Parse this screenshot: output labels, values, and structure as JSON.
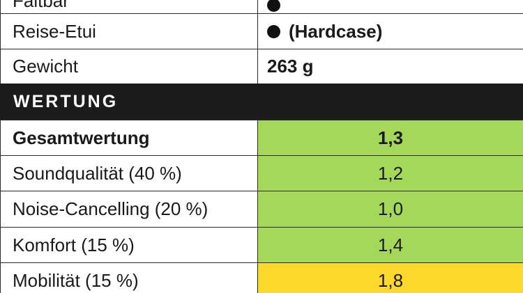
{
  "rows": [
    {
      "label": "Faltbar",
      "value": ""
    },
    {
      "label": "Reise-Etui",
      "value": "(Hardcase)"
    },
    {
      "label": "Gewicht",
      "value": "263 g"
    }
  ],
  "section": {
    "title": "WERTUNG"
  },
  "ratings": [
    {
      "label": "Gesamtwertung",
      "value": "1,3",
      "color": "#a5d85a"
    },
    {
      "label": "Soundqualität (40 %)",
      "value": "1,2",
      "color": "#a5d85a"
    },
    {
      "label": "Noise-Cancelling (20 %)",
      "value": "1,0",
      "color": "#a5d85a"
    },
    {
      "label": "Komfort (15 %)",
      "value": "1,4",
      "color": "#a5d85a"
    },
    {
      "label": "Mobilität (15 %)",
      "value": "1,8",
      "color": "#fcd72c"
    }
  ],
  "icons": {
    "bullet": "filled-circle-icon"
  }
}
